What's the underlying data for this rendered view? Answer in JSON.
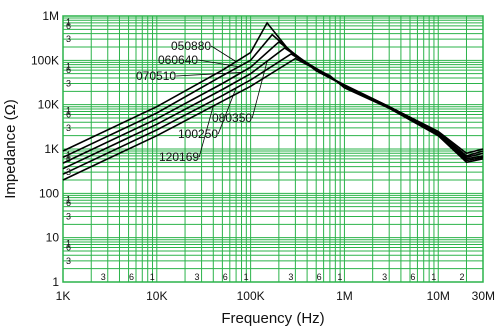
{
  "chart_data": {
    "type": "line",
    "title": "",
    "xlabel": "Frequency (Hz)",
    "ylabel": "Impedance (Ω)",
    "x_scale": "log",
    "y_scale": "log",
    "xlim": [
      1000,
      30000000
    ],
    "ylim": [
      1,
      1000000
    ],
    "grid": true,
    "grid_color": "#2bb34a",
    "line_color": "#000000",
    "x_ticks": [
      {
        "value": 1000,
        "label": "1K"
      },
      {
        "value": 10000,
        "label": "10K"
      },
      {
        "value": 100000,
        "label": "100K"
      },
      {
        "value": 1000000,
        "label": "1M"
      },
      {
        "value": 10000000,
        "label": "10M"
      },
      {
        "value": 30000000,
        "label": "30M"
      }
    ],
    "x_minor_labels": [
      {
        "value": 3000,
        "label": "3"
      },
      {
        "value": 6000,
        "label": "6"
      },
      {
        "value": 10000,
        "label": "1"
      },
      {
        "value": 30000,
        "label": "3"
      },
      {
        "value": 60000,
        "label": "6"
      },
      {
        "value": 100000,
        "label": "1"
      },
      {
        "value": 300000,
        "label": "3"
      },
      {
        "value": 600000,
        "label": "6"
      },
      {
        "value": 1000000,
        "label": "1"
      },
      {
        "value": 3000000,
        "label": "3"
      },
      {
        "value": 6000000,
        "label": "6"
      },
      {
        "value": 10000000,
        "label": "1"
      },
      {
        "value": 20000000,
        "label": "2"
      }
    ],
    "y_ticks": [
      {
        "value": 1,
        "label": "1"
      },
      {
        "value": 10,
        "label": "10"
      },
      {
        "value": 100,
        "label": "100"
      },
      {
        "value": 1000,
        "label": "1K"
      },
      {
        "value": 10000,
        "label": "10K"
      },
      {
        "value": 100000,
        "label": "100K"
      },
      {
        "value": 1000000,
        "label": "1M"
      }
    ],
    "y_minor_labels": [
      {
        "value": 3,
        "label": "3"
      },
      {
        "value": 6,
        "label": "6"
      },
      {
        "value": 10,
        "label": "1"
      },
      {
        "value": 30,
        "label": "3"
      },
      {
        "value": 60,
        "label": "6"
      },
      {
        "value": 100,
        "label": "1"
      },
      {
        "value": 300,
        "label": "3"
      },
      {
        "value": 600,
        "label": "6"
      },
      {
        "value": 1000,
        "label": "1"
      },
      {
        "value": 3000,
        "label": "3"
      },
      {
        "value": 6000,
        "label": "6"
      },
      {
        "value": 10000,
        "label": "1"
      },
      {
        "value": 30000,
        "label": "3"
      },
      {
        "value": 60000,
        "label": "6"
      },
      {
        "value": 100000,
        "label": "1"
      },
      {
        "value": 300000,
        "label": "3"
      },
      {
        "value": 600000,
        "label": "6"
      },
      {
        "value": 1000000,
        "label": "1"
      }
    ],
    "series": [
      {
        "name": "050880",
        "x": [
          1000,
          10000,
          50000,
          100000,
          150000,
          250000,
          500000,
          1000000,
          3000000,
          10000000,
          20000000,
          30000000
        ],
        "y": [
          900,
          9000,
          60000,
          150000,
          700000,
          180000,
          60000,
          28000,
          9000,
          2500,
          800,
          1000
        ]
      },
      {
        "name": "060640",
        "x": [
          1000,
          10000,
          50000,
          100000,
          170000,
          280000,
          500000,
          1000000,
          3000000,
          10000000,
          20000000,
          30000000
        ],
        "y": [
          650,
          6500,
          45000,
          100000,
          380000,
          150000,
          58000,
          27000,
          9000,
          2400,
          700,
          900
        ]
      },
      {
        "name": "070510",
        "x": [
          1000,
          10000,
          50000,
          100000,
          200000,
          320000,
          550000,
          1000000,
          3000000,
          10000000,
          20000000,
          30000000
        ],
        "y": [
          480,
          4800,
          30000,
          70000,
          260000,
          120000,
          55000,
          27000,
          8900,
          2300,
          650,
          800
        ]
      },
      {
        "name": "080350",
        "x": [
          1000,
          10000,
          50000,
          100000,
          230000,
          360000,
          600000,
          1000000,
          3000000,
          10000000,
          20000000,
          30000000
        ],
        "y": [
          360,
          3600,
          22000,
          50000,
          190000,
          100000,
          52000,
          26000,
          8700,
          2200,
          600,
          700
        ]
      },
      {
        "name": "100250",
        "x": [
          1000,
          10000,
          50000,
          100000,
          270000,
          400000,
          650000,
          1000000,
          3000000,
          10000000,
          20000000,
          30000000
        ],
        "y": [
          270,
          2700,
          16000,
          36000,
          140000,
          85000,
          48000,
          25000,
          8500,
          2100,
          550,
          650
        ]
      },
      {
        "name": "120169",
        "x": [
          1000,
          10000,
          50000,
          100000,
          300000,
          450000,
          700000,
          1000000,
          3000000,
          10000000,
          20000000,
          30000000
        ],
        "y": [
          200,
          2000,
          12000,
          26000,
          110000,
          70000,
          45000,
          24000,
          8300,
          2000,
          500,
          600
        ]
      }
    ],
    "annotations": [
      {
        "text": "050880",
        "series": "050880",
        "at_x": 70000
      },
      {
        "text": "060640",
        "series": "060640",
        "at_x": 75000
      },
      {
        "text": "070510",
        "series": "070510",
        "at_x": 80000
      },
      {
        "text": "080350",
        "series": "080350",
        "at_x": 150000
      },
      {
        "text": "100250",
        "series": "100250",
        "at_x": 70000
      },
      {
        "text": "120169",
        "series": "120169",
        "at_x": 40000
      }
    ]
  }
}
